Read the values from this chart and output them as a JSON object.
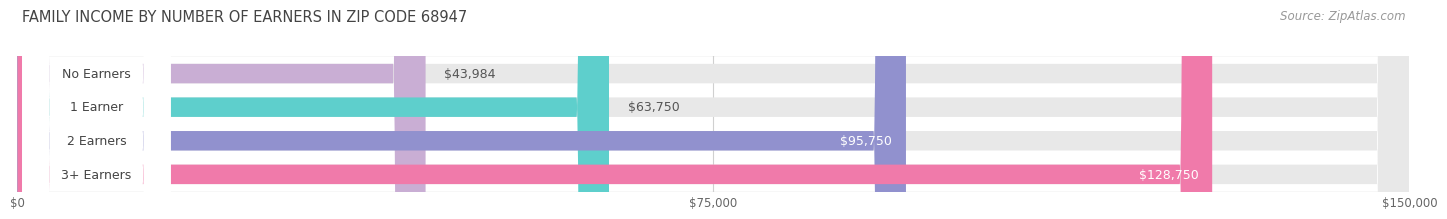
{
  "title": "FAMILY INCOME BY NUMBER OF EARNERS IN ZIP CODE 68947",
  "source": "Source: ZipAtlas.com",
  "categories": [
    "No Earners",
    "1 Earner",
    "2 Earners",
    "3+ Earners"
  ],
  "values": [
    43984,
    63750,
    95750,
    128750
  ],
  "max_value": 150000,
  "bar_colors": [
    "#c9aed4",
    "#5ecfcc",
    "#9191ce",
    "#f07aaa"
  ],
  "bar_bg_color": "#e8e8e8",
  "value_label_colors": [
    "#555555",
    "#555555",
    "#ffffff",
    "#ffffff"
  ],
  "value_labels": [
    "$43,984",
    "$63,750",
    "$95,750",
    "$128,750"
  ],
  "x_ticks": [
    0,
    75000,
    150000
  ],
  "x_tick_labels": [
    "$0",
    "$75,000",
    "$150,000"
  ],
  "title_fontsize": 10.5,
  "source_fontsize": 8.5,
  "cat_fontsize": 9,
  "value_fontsize": 9,
  "bar_height": 0.58,
  "fig_bg_color": "#ffffff",
  "plot_bg_color": "#f7f7f7",
  "grid_color": "#d0d0d0"
}
